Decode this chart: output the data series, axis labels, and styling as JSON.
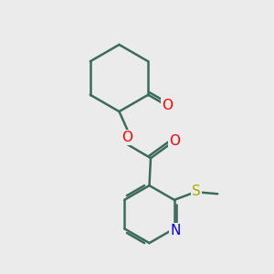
{
  "background_color": "#ebebeb",
  "bond_color": "#3d6b5a",
  "bond_width": 1.8,
  "O_color": "#ff0000",
  "N_color": "#0000ee",
  "S_color": "#aaaa00",
  "figsize": [
    3.0,
    3.0
  ],
  "dpi": 100,
  "xlim": [
    0,
    10
  ],
  "ylim": [
    0,
    10
  ]
}
